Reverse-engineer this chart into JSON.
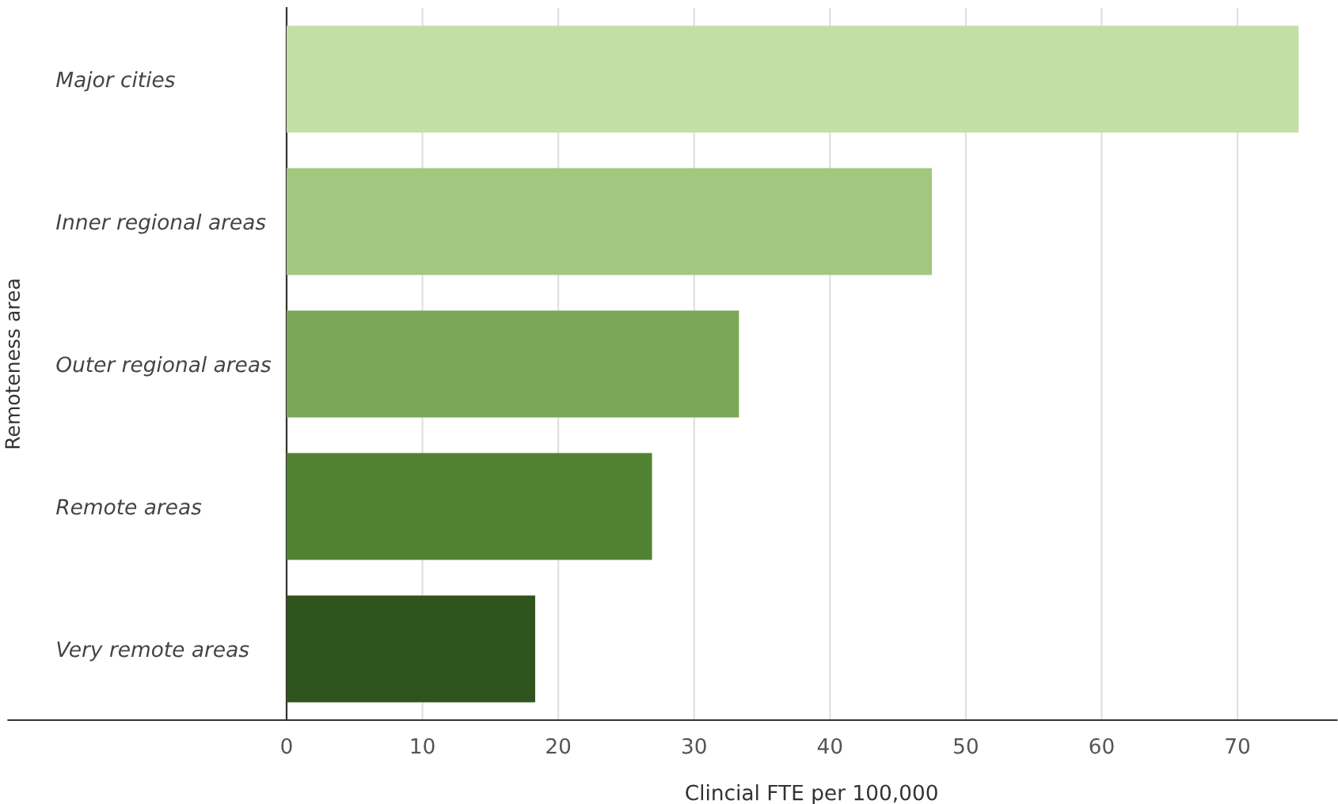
{
  "chart_data": {
    "type": "bar",
    "orientation": "horizontal",
    "xlabel": "Clincial FTE per 100,000",
    "ylabel": "Remoteness area",
    "categories": [
      "Major cities",
      "Inner regional areas",
      "Outer regional areas",
      "Remote areas",
      "Very remote areas"
    ],
    "values": [
      74.5,
      47.5,
      33.3,
      26.9,
      18.3
    ],
    "colors": [
      "#c2e0a6",
      "#a2c77f",
      "#7aa756",
      "#518232",
      "#30541d"
    ],
    "xlim": [
      0,
      77.3
    ],
    "xticks": [
      0,
      10,
      20,
      30,
      40,
      50,
      60,
      70
    ],
    "grid": "x",
    "legend": false
  }
}
